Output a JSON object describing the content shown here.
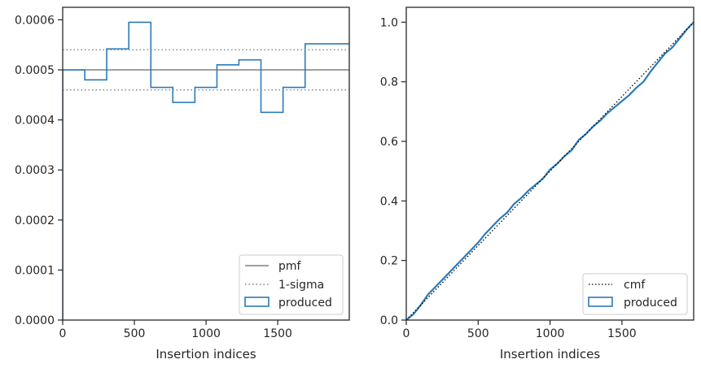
{
  "chart_data": [
    {
      "type": "line",
      "xlabel": "Insertion indices",
      "ylabel": "",
      "xlim": [
        0,
        1999
      ],
      "ylim": [
        0,
        0.000625
      ],
      "xticks": [
        0,
        500,
        1000,
        1500
      ],
      "xtick_labels": [
        "0",
        "500",
        "1000",
        "1500"
      ],
      "yticks": [
        0,
        0.0001,
        0.0002,
        0.0003,
        0.0004,
        0.0005,
        0.0006
      ],
      "ytick_labels": [
        "0.0000",
        "0.0001",
        "0.0002",
        "0.0003",
        "0.0004",
        "0.0005",
        "0.0006"
      ],
      "legend_position": "bottom-right",
      "pmf": {
        "name": "pmf",
        "value": 0.0005,
        "color": "#808080"
      },
      "sigma": {
        "name": "1-sigma",
        "lower": 0.00046,
        "upper": 0.00054,
        "color": "#808080"
      },
      "histogram": {
        "name": "produced",
        "color": "#2b7bb9",
        "bin_edges": [
          0,
          154,
          307,
          461,
          615,
          768,
          922,
          1076,
          1229,
          1383,
          1537,
          1691,
          1999
        ],
        "values": [
          0.0005,
          0.00048,
          0.000542,
          0.000595,
          0.000465,
          0.000435,
          0.000465,
          0.00051,
          0.00052,
          0.000415,
          0.000465,
          0.000552
        ]
      }
    },
    {
      "type": "line",
      "xlabel": "Insertion indices",
      "ylabel": "",
      "xlim": [
        0,
        1999
      ],
      "ylim": [
        0,
        1.05
      ],
      "xticks": [
        0,
        500,
        1000,
        1500
      ],
      "xtick_labels": [
        "0",
        "500",
        "1000",
        "1500"
      ],
      "yticks": [
        0,
        0.2,
        0.4,
        0.6,
        0.8,
        1.0
      ],
      "ytick_labels": [
        "0.0",
        "0.2",
        "0.4",
        "0.6",
        "0.8",
        "1.0"
      ],
      "legend_position": "bottom-right",
      "series": [
        {
          "name": "cmf",
          "style": "dotted",
          "color": "#000000",
          "x": [
            0,
            1999
          ],
          "y": [
            0,
            1.0
          ]
        },
        {
          "name": "produced",
          "style": "solid",
          "color": "#2b7bb9",
          "x": [
            0,
            50,
            100,
            150,
            200,
            250,
            300,
            350,
            400,
            450,
            500,
            550,
            600,
            650,
            700,
            750,
            800,
            850,
            900,
            950,
            1000,
            1050,
            1100,
            1150,
            1200,
            1250,
            1300,
            1350,
            1400,
            1450,
            1500,
            1550,
            1600,
            1650,
            1700,
            1750,
            1800,
            1850,
            1900,
            1950,
            1999
          ],
          "y": [
            0,
            0.02,
            0.05,
            0.085,
            0.11,
            0.135,
            0.16,
            0.185,
            0.21,
            0.235,
            0.26,
            0.29,
            0.315,
            0.34,
            0.36,
            0.39,
            0.41,
            0.435,
            0.455,
            0.475,
            0.505,
            0.525,
            0.55,
            0.57,
            0.605,
            0.625,
            0.65,
            0.67,
            0.695,
            0.715,
            0.735,
            0.755,
            0.78,
            0.8,
            0.835,
            0.865,
            0.895,
            0.915,
            0.945,
            0.975,
            1.0
          ]
        }
      ]
    }
  ]
}
